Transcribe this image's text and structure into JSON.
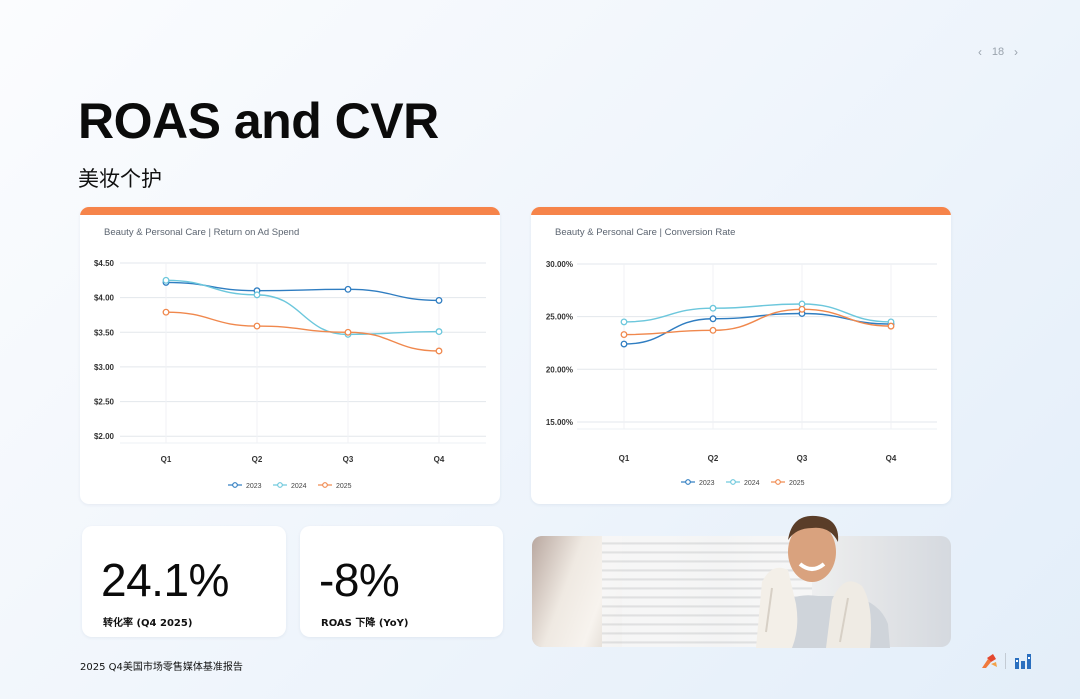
{
  "pager": {
    "prev": "‹",
    "page": "18",
    "next": "›"
  },
  "title": "ROAS and CVR",
  "subtitle": "美妆个护",
  "charts": [
    {
      "type": "line",
      "title": "Beauty & Personal Care |  Return on Ad Spend",
      "categories": [
        "Q1",
        "Q2",
        "Q3",
        "Q4"
      ],
      "yticks": [
        "$4.50",
        "$4.00",
        "$3.50",
        "$3.00",
        "$2.50",
        "$2.00"
      ],
      "ylim": [
        1.7,
        4.5
      ],
      "series": [
        {
          "name": "2023",
          "color": "#2f7dc1",
          "values": [
            4.22,
            4.1,
            4.12,
            3.96
          ]
        },
        {
          "name": "2024",
          "color": "#6cc7dc",
          "values": [
            4.25,
            4.04,
            3.47,
            3.51
          ]
        },
        {
          "name": "2025",
          "color": "#f0884d",
          "values": [
            3.79,
            3.59,
            3.5,
            3.23
          ]
        }
      ]
    },
    {
      "type": "line",
      "title": "Beauty & Personal Care |  Conversion Rate",
      "categories": [
        "Q1",
        "Q2",
        "Q3",
        "Q4"
      ],
      "yticks": [
        "30.00%",
        "25.00%",
        "20.00%",
        "15.00%"
      ],
      "ylim": [
        13.0,
        30.0
      ],
      "series": [
        {
          "name": "2023",
          "color": "#2f7dc1",
          "values": [
            22.4,
            24.8,
            25.3,
            24.3
          ]
        },
        {
          "name": "2024",
          "color": "#6cc7dc",
          "values": [
            24.5,
            25.8,
            26.2,
            24.5
          ]
        },
        {
          "name": "2025",
          "color": "#f0884d",
          "values": [
            23.3,
            23.7,
            25.7,
            24.1
          ]
        }
      ]
    }
  ],
  "stats": [
    {
      "value": "24.1%",
      "label": "转化率 (Q4 2025)"
    },
    {
      "value": "-8%",
      "label": "ROAS 下降 (YoY)"
    }
  ],
  "footer": "2025 Q4美国市场零售媒体基准报告",
  "icons": {
    "logo_left": "red-orange-figure-logo",
    "logo_right": "blue-building-chart-logo"
  }
}
